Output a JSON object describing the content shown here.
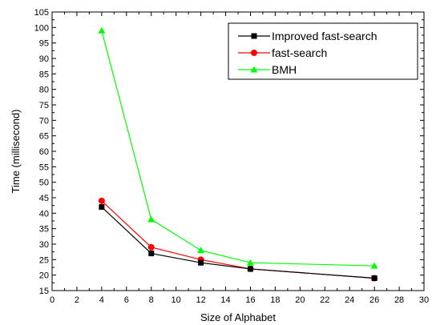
{
  "chart_data": {
    "type": "line",
    "title": "",
    "xlabel": "Size of Alphabet",
    "ylabel": "Time (millisecond)",
    "xlim": [
      0,
      30
    ],
    "ylim": [
      15,
      105
    ],
    "xticks": [
      0,
      2,
      4,
      6,
      8,
      10,
      12,
      14,
      16,
      18,
      20,
      22,
      24,
      26,
      28,
      30
    ],
    "yticks": [
      15,
      20,
      25,
      30,
      35,
      40,
      45,
      50,
      55,
      60,
      65,
      70,
      75,
      80,
      85,
      90,
      95,
      100,
      105
    ],
    "x": [
      4,
      8,
      12,
      16,
      26
    ],
    "grid": false,
    "legend_position": "top-right",
    "series": [
      {
        "name": "Improved fast-search",
        "values": [
          42,
          27,
          24,
          22,
          19
        ],
        "color": "#000000",
        "marker": "square"
      },
      {
        "name": "fast-search",
        "values": [
          44,
          29,
          25,
          22,
          19
        ],
        "color": "#ff0000",
        "marker": "circle"
      },
      {
        "name": "BMH",
        "values": [
          99,
          38,
          28,
          24,
          23
        ],
        "color": "#00ff00",
        "marker": "triangle"
      }
    ]
  }
}
